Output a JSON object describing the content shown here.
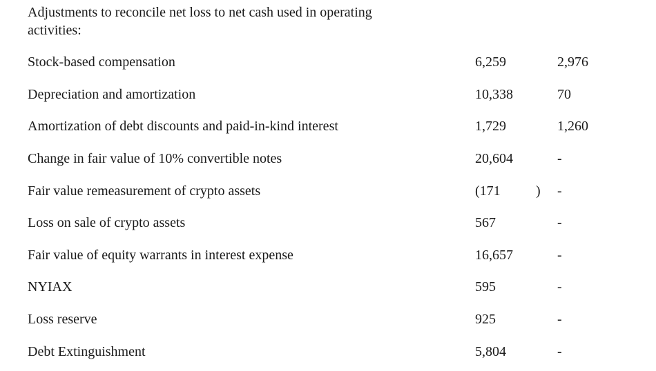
{
  "heading": {
    "line1": "Adjustments to reconcile net loss to net cash used in operating",
    "line2": "activities:"
  },
  "table": {
    "rows": [
      {
        "label": "Stock-based compensation",
        "col1": "6,259",
        "col1_close": "",
        "col2": "2,976"
      },
      {
        "label": "Depreciation and amortization",
        "col1": "10,338",
        "col1_close": "",
        "col2": "70"
      },
      {
        "label": "Amortization of debt discounts and paid-in-kind interest",
        "col1": "1,729",
        "col1_close": "",
        "col2": "1,260"
      },
      {
        "label": "Change in fair value of 10% convertible notes",
        "col1": "20,604",
        "col1_close": "",
        "col2": "-"
      },
      {
        "label": "Fair value remeasurement of crypto assets",
        "col1": "(171",
        "col1_close": ")",
        "col2": "-"
      },
      {
        "label": "Loss on sale of crypto assets",
        "col1": "567",
        "col1_close": "",
        "col2": "-"
      },
      {
        "label": "Fair value of equity warrants in interest expense",
        "col1": "16,657",
        "col1_close": "",
        "col2": "-"
      },
      {
        "label": "NYIAX",
        "col1": "595",
        "col1_close": "",
        "col2": "-"
      },
      {
        "label": "Loss reserve",
        "col1": "925",
        "col1_close": "",
        "col2": "-"
      },
      {
        "label": "Debt Extinguishment",
        "col1": "5,804",
        "col1_close": "",
        "col2": "-"
      }
    ],
    "text_color": "#1a1a1a",
    "background_color": "#ffffff"
  }
}
